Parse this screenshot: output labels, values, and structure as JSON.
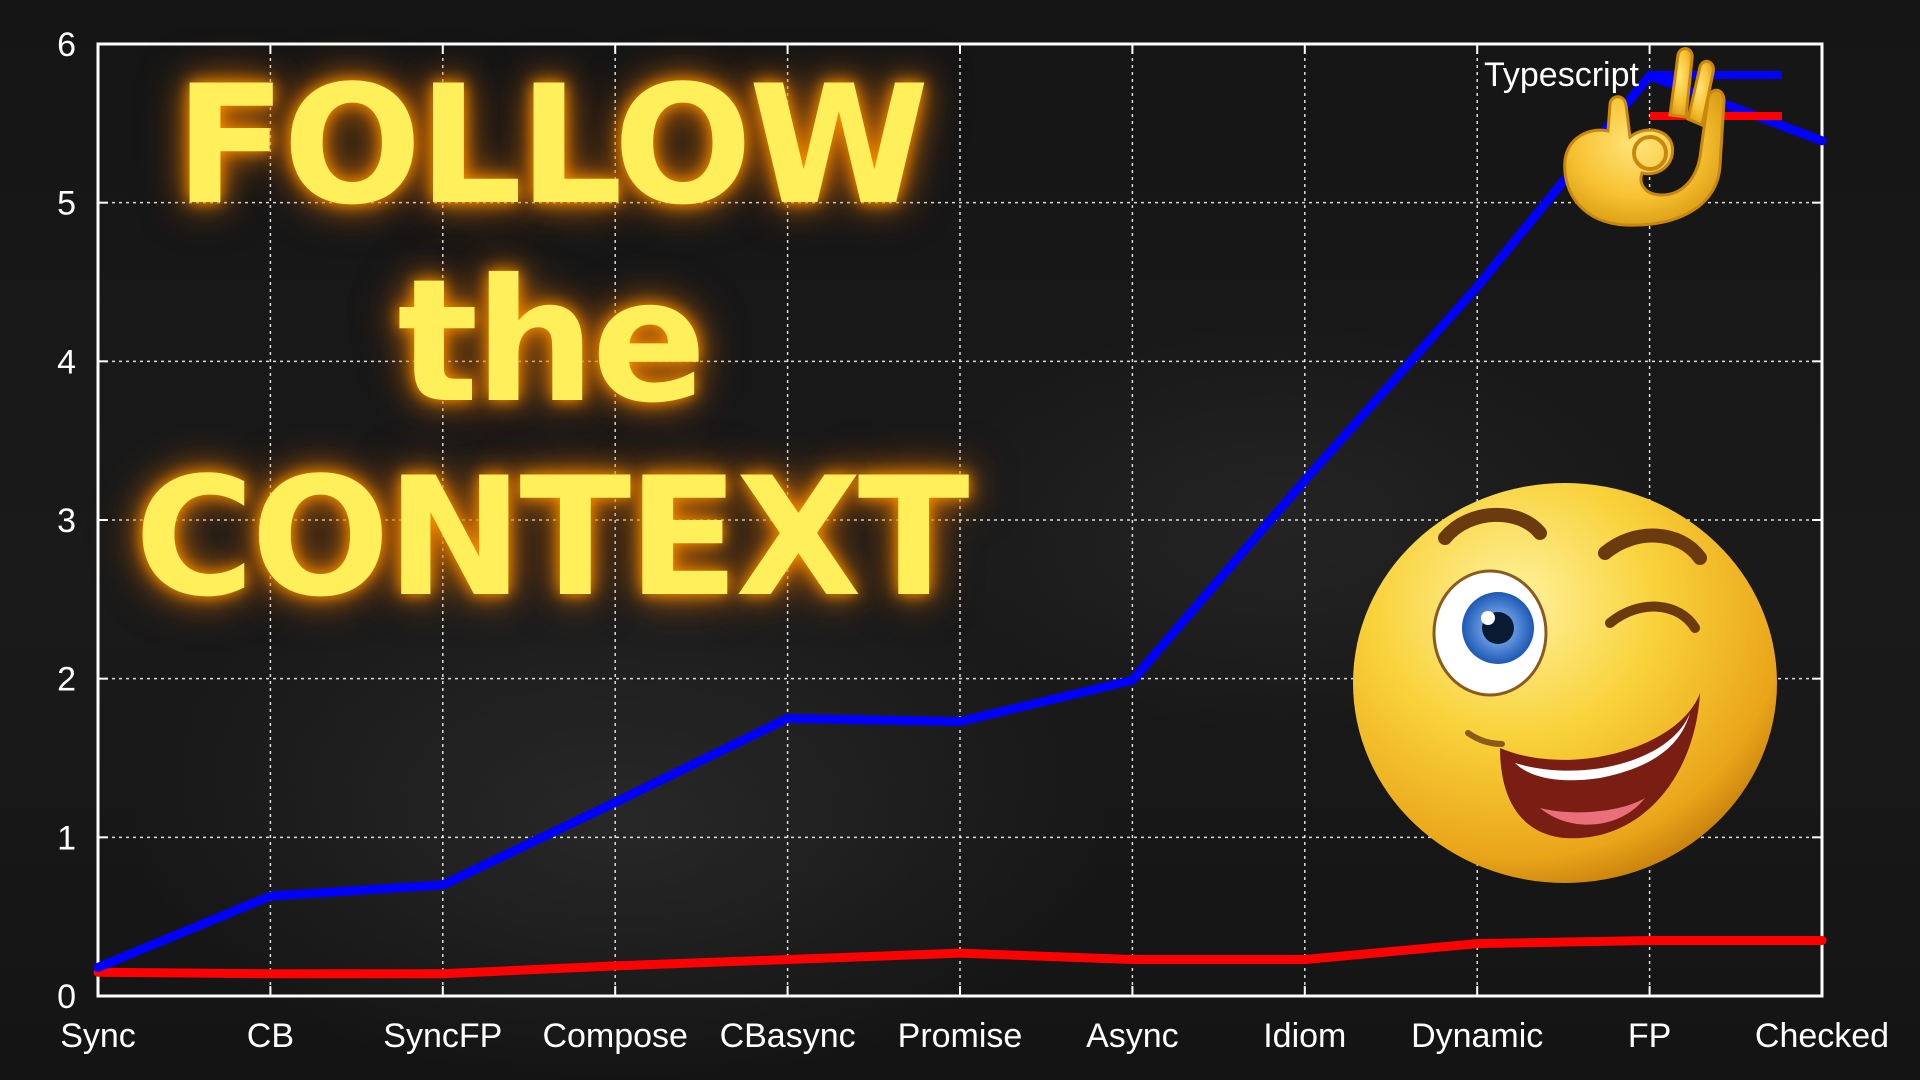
{
  "overlay": {
    "title_line1": "FOLLOW",
    "title_line2": "the",
    "title_line3": "CONTEXT",
    "title_color": "#ffef5a",
    "stickers": [
      "ok-hand-icon",
      "winking-face-icon"
    ]
  },
  "chart_data": {
    "type": "line",
    "title": "",
    "xlabel": "",
    "ylabel": "",
    "categories": [
      "Sync",
      "CB",
      "SyncFP",
      "Compose",
      "CBasync",
      "Promise",
      "Async",
      "Idiom",
      "Dynamic",
      "FP",
      "Checked"
    ],
    "ylim": [
      0,
      6
    ],
    "yticks": [
      0,
      1,
      2,
      3,
      4,
      5,
      6
    ],
    "grid": true,
    "legend_position": "top-right",
    "series": [
      {
        "name": "Typescript",
        "color": "#0000ff",
        "values": [
          0.18,
          0.63,
          0.7,
          1.22,
          1.75,
          1.73,
          1.99,
          3.25,
          4.47,
          5.8,
          5.39
        ]
      },
      {
        "name": "",
        "color": "#ff0000",
        "values": [
          0.15,
          0.14,
          0.14,
          0.19,
          0.23,
          0.27,
          0.23,
          0.23,
          0.33,
          0.35,
          0.35
        ]
      }
    ]
  }
}
